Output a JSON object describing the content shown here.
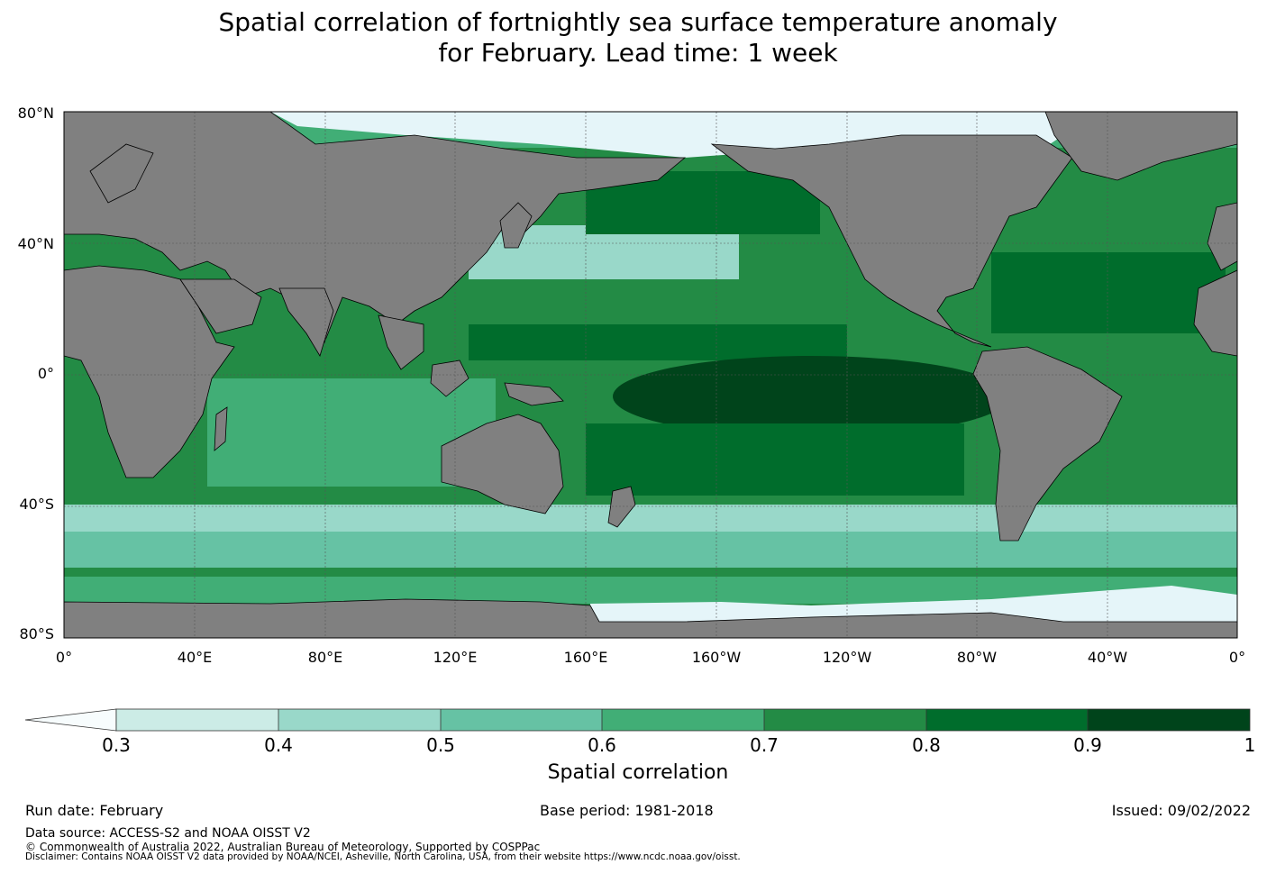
{
  "title": {
    "line1": "Spatial correlation of fortnightly sea surface temperature anomaly",
    "line2": "for February. Lead time: 1 week"
  },
  "map": {
    "lat_labels": [
      "80°N",
      "40°N",
      "0°",
      "40°S",
      "80°S"
    ],
    "lon_labels": [
      "0°",
      "40°E",
      "80°E",
      "120°E",
      "160°E",
      "160°W",
      "120°W",
      "80°W",
      "40°W",
      "0°"
    ],
    "colors": {
      "land": "#808080",
      "ice": "#e5f5f9",
      "grid": "#555555"
    }
  },
  "colorbar": {
    "label": "Spatial correlation",
    "ticks": [
      "0.3",
      "0.4",
      "0.5",
      "0.6",
      "0.7",
      "0.8",
      "0.9",
      "1"
    ],
    "extend_color": "#f7fcfd",
    "bin_colors": [
      "#ccece6",
      "#99d8c9",
      "#66c2a4",
      "#41ae76",
      "#238b45",
      "#006d2c",
      "#00441b"
    ]
  },
  "footer": {
    "run_date": "Run date: February",
    "base_period": "Base period: 1981-2018",
    "issued": "Issued: 09/02/2022",
    "source": "Data source: ACCESS-S2 and NOAA OISST V2",
    "copyright": "© Commonwealth of Australia 2022, Australian Bureau of Meteorology, Supported by COSPPac",
    "disclaimer": "Disclaimer: Contains NOAA OISST V2 data provided by NOAA/NCEI, Asheville, North Carolina, USA, from their website https://www.ncdc.noaa.gov/oisst."
  }
}
